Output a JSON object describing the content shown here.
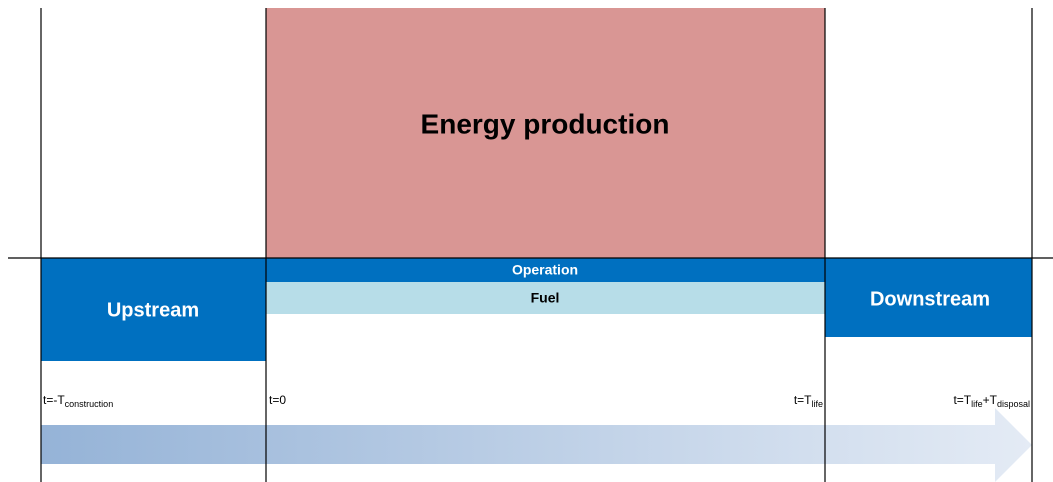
{
  "blocks": {
    "energy_production": "Energy production",
    "operation": "Operation",
    "fuel": "Fuel",
    "upstream": "Upstream",
    "downstream": "Downstream"
  },
  "time_labels": [
    [
      "t=-T",
      "construction"
    ],
    [
      "t=0"
    ],
    [
      "t=T",
      "life"
    ],
    [
      "t=T",
      "life",
      "+T",
      "disposal"
    ]
  ]
}
